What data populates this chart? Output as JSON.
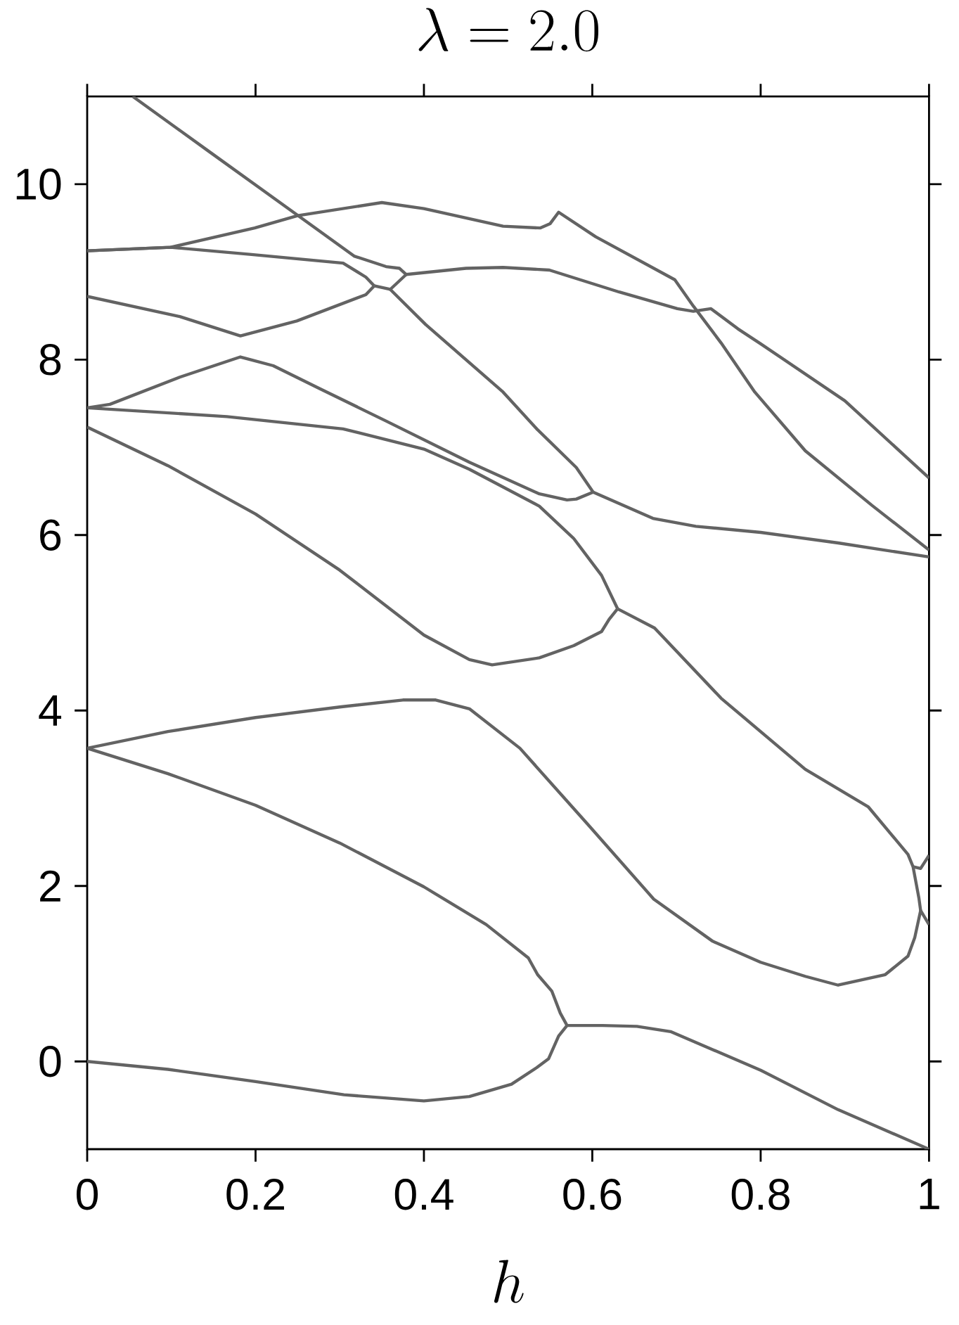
{
  "chart_data": {
    "type": "line",
    "title": "\\lambda = 2.0",
    "xlabel": "h",
    "xlim": [
      0,
      1
    ],
    "ylim": [
      -1,
      11
    ],
    "xticks": [
      0,
      0.2,
      0.4,
      0.6,
      0.8,
      1
    ],
    "yticks": [
      0,
      2,
      4,
      6,
      8,
      10
    ],
    "line_style": "solid",
    "series": [
      {
        "color": "#636363",
        "x": [
          0,
          0.096,
          0.2,
          0.305,
          0.4,
          0.454,
          0.504,
          0.534,
          0.548,
          0.56,
          0.57,
          0.612,
          0.653,
          0.693,
          0.8,
          0.892,
          1.0
        ],
        "values": [
          0,
          -0.09,
          -0.23,
          -0.38,
          -0.45,
          -0.4,
          -0.26,
          -0.07,
          0.03,
          0.29,
          0.41,
          0.41,
          0.4,
          0.34,
          -0.1,
          -0.55,
          -1.0
        ]
      },
      {
        "color": "#636363",
        "x": [
          0,
          0.096,
          0.2,
          0.3,
          0.4,
          0.474,
          0.524,
          0.535,
          0.552,
          0.562,
          0.57
        ],
        "values": [
          3.57,
          3.28,
          2.92,
          2.49,
          1.99,
          1.56,
          1.18,
          0.99,
          0.8,
          0.55,
          0.41
        ]
      },
      {
        "color": "#636363",
        "x": [
          0,
          0.096,
          0.2,
          0.3,
          0.375,
          0.414,
          0.454,
          0.514,
          0.594,
          0.673,
          0.743,
          0.8,
          0.853,
          0.892,
          0.948,
          0.975,
          0.983,
          0.99,
          1.0
        ],
        "values": [
          3.57,
          3.76,
          3.92,
          4.04,
          4.12,
          4.12,
          4.02,
          3.57,
          2.71,
          1.85,
          1.37,
          1.13,
          0.97,
          0.87,
          0.99,
          1.2,
          1.41,
          1.72,
          1.56
        ]
      },
      {
        "color": "#636363",
        "x": [
          0.63,
          0.674,
          0.753,
          0.853,
          0.928,
          0.975,
          0.981,
          0.988,
          0.99
        ],
        "values": [
          5.16,
          4.94,
          4.14,
          3.33,
          2.9,
          2.36,
          2.22,
          1.86,
          1.72
        ]
      },
      {
        "color": "#636363",
        "x": [
          0.981,
          0.99,
          1.0
        ],
        "values": [
          2.22,
          2.2,
          2.35
        ]
      },
      {
        "color": "#636363",
        "x": [
          0,
          0.096,
          0.2,
          0.3,
          0.4,
          0.454,
          0.481,
          0.537,
          0.578,
          0.611,
          0.62,
          0.63
        ],
        "values": [
          7.23,
          6.79,
          6.24,
          5.6,
          4.86,
          4.58,
          4.52,
          4.6,
          4.74,
          4.9,
          5.04,
          5.16
        ]
      },
      {
        "color": "#636363",
        "x": [
          0,
          0.166,
          0.304,
          0.4,
          0.454,
          0.537,
          0.578,
          0.611,
          0.63
        ],
        "values": [
          7.45,
          7.35,
          7.21,
          6.98,
          6.75,
          6.33,
          5.96,
          5.54,
          5.16
        ]
      },
      {
        "color": "#636363",
        "x": [
          0,
          0.027,
          0.11,
          0.182,
          0.221,
          0.276,
          0.355,
          0.454,
          0.537,
          0.57,
          0.581,
          0.601
        ],
        "values": [
          7.45,
          7.49,
          7.8,
          8.03,
          7.93,
          7.67,
          7.3,
          6.83,
          6.47,
          6.4,
          6.41,
          6.49
        ]
      },
      {
        "color": "#636363",
        "x": [
          0.601,
          0.672,
          0.723,
          0.8,
          0.892,
          1.0
        ],
        "values": [
          6.49,
          6.19,
          6.1,
          6.03,
          5.91,
          5.75
        ]
      },
      {
        "color": "#636363",
        "x": [
          0.054,
          0.145,
          0.2,
          0.271,
          0.317,
          0.355,
          0.371,
          0.379
        ],
        "values": [
          11.0,
          10.37,
          9.99,
          9.5,
          9.18,
          9.06,
          9.04,
          8.97
        ]
      },
      {
        "color": "#636363",
        "x": [
          0,
          0.11,
          0.182,
          0.249,
          0.331,
          0.341
        ],
        "values": [
          8.72,
          8.49,
          8.27,
          8.44,
          8.74,
          8.84
        ]
      },
      {
        "color": "#636363",
        "x": [
          0,
          0.099,
          0.193,
          0.304,
          0.331,
          0.341
        ],
        "values": [
          9.24,
          9.28,
          9.2,
          9.1,
          8.94,
          8.84
        ]
      },
      {
        "color": "#636363",
        "x": [
          0,
          0.099,
          0.199,
          0.25,
          0.35,
          0.4,
          0.494,
          0.538,
          0.55,
          0.56,
          0.604,
          0.698,
          0.72,
          0.753,
          0.793,
          0.853,
          0.932,
          1.0
        ],
        "values": [
          9.24,
          9.28,
          9.5,
          9.64,
          9.79,
          9.72,
          9.52,
          9.5,
          9.55,
          9.68,
          9.4,
          8.91,
          8.61,
          8.19,
          7.63,
          6.96,
          6.34,
          5.83
        ]
      },
      {
        "color": "#636363",
        "x": [
          0.341,
          0.36,
          0.379
        ],
        "values": [
          8.84,
          8.8,
          8.97
        ]
      },
      {
        "color": "#636363",
        "x": [
          0.36,
          0.402,
          0.494,
          0.534,
          0.581,
          0.601
        ],
        "values": [
          8.8,
          8.4,
          7.63,
          7.21,
          6.77,
          6.49
        ]
      },
      {
        "color": "#636363",
        "x": [
          0.379,
          0.45,
          0.494,
          0.549,
          0.632,
          0.701,
          0.72,
          0.741,
          0.773,
          0.8,
          0.9,
          1.0
        ],
        "values": [
          8.97,
          9.04,
          9.05,
          9.02,
          8.77,
          8.58,
          8.55,
          8.58,
          8.35,
          8.18,
          7.53,
          6.65
        ]
      }
    ]
  }
}
